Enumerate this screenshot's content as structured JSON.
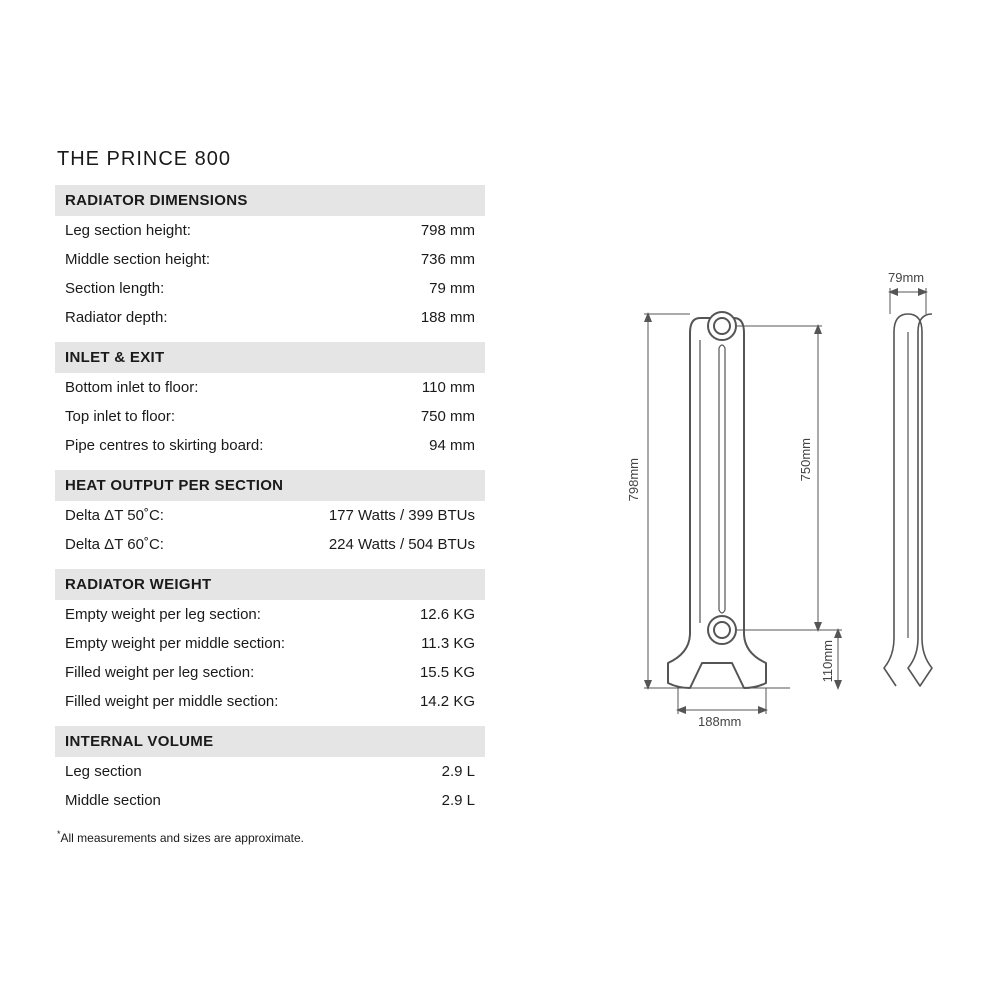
{
  "title": "THE PRINCE 800",
  "footnote": "All measurements and sizes are approximate.",
  "colors": {
    "header_bg": "#e5e5e5",
    "text": "#1a1a1a",
    "diagram_stroke": "#555555",
    "diagram_fill": "#ffffff"
  },
  "sections": [
    {
      "header": "RADIATOR DIMENSIONS",
      "rows": [
        {
          "label": "Leg section height:",
          "value": "798 mm"
        },
        {
          "label": "Middle section height:",
          "value": "736 mm"
        },
        {
          "label": "Section length:",
          "value": "79 mm"
        },
        {
          "label": "Radiator depth:",
          "value": "188 mm"
        }
      ]
    },
    {
      "header": "INLET & EXIT",
      "rows": [
        {
          "label": "Bottom inlet to floor:",
          "value": "110 mm"
        },
        {
          "label": "Top inlet to floor:",
          "value": "750 mm"
        },
        {
          "label": "Pipe centres to skirting board:",
          "value": "94 mm"
        }
      ]
    },
    {
      "header": "HEAT OUTPUT PER SECTION",
      "rows": [
        {
          "label": "Delta ΔT 50˚C:",
          "value": "177 Watts / 399 BTUs"
        },
        {
          "label": "Delta ΔT 60˚C:",
          "value": "224 Watts / 504 BTUs"
        }
      ]
    },
    {
      "header": "RADIATOR WEIGHT",
      "rows": [
        {
          "label": "Empty weight per leg section:",
          "value": "12.6 KG"
        },
        {
          "label": "Empty weight per middle section:",
          "value": "11.3 KG"
        },
        {
          "label": "Filled weight per leg section:",
          "value": "15.5 KG"
        },
        {
          "label": "Filled weight per middle section:",
          "value": "14.2 KG"
        }
      ]
    },
    {
      "header": "INTERNAL VOLUME",
      "rows": [
        {
          "label": "Leg section",
          "value": "2.9 L"
        },
        {
          "label": "Middle section",
          "value": "2.9 L"
        }
      ]
    }
  ],
  "diagram": {
    "labels": {
      "height_left": "798mm",
      "height_right": "750mm",
      "inlet_bottom": "110mm",
      "depth_bottom": "188mm",
      "width_top": "79mm"
    },
    "stroke_width": 2,
    "thin_stroke": 1
  }
}
